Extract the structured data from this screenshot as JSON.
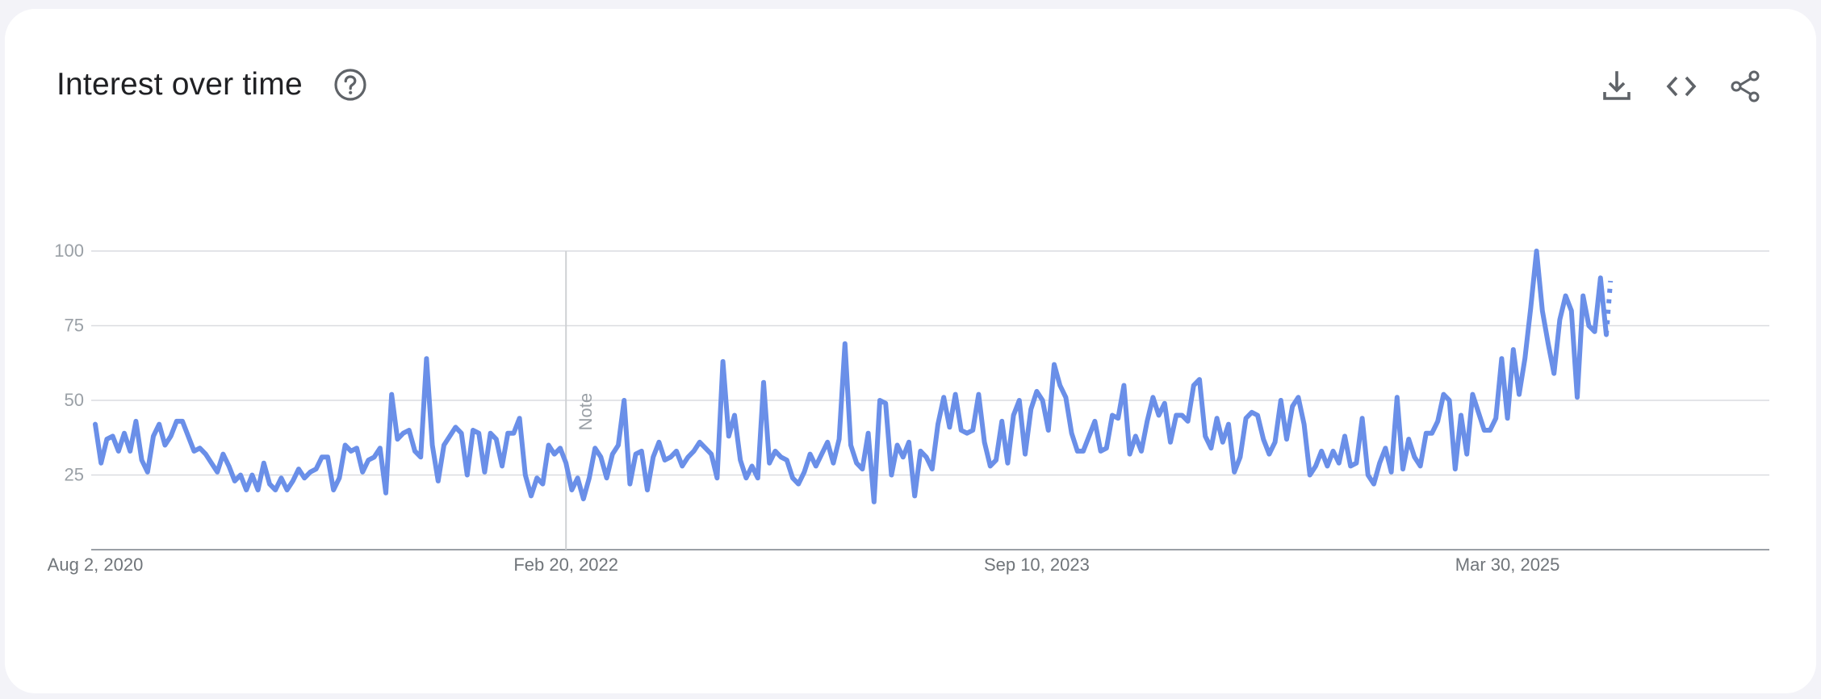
{
  "card": {
    "title": "Interest over time",
    "help_icon": "help-circle-icon",
    "actions": [
      {
        "name": "download-button",
        "icon": "download-icon"
      },
      {
        "name": "embed-button",
        "icon": "code-icon"
      },
      {
        "name": "share-button",
        "icon": "share-icon"
      }
    ]
  },
  "chart_data": {
    "type": "line",
    "title": "Interest over time",
    "xlabel": "",
    "ylabel": "",
    "ylim": [
      0,
      100
    ],
    "yticks": [
      25,
      50,
      75,
      100
    ],
    "grid": true,
    "legend": "none",
    "x_tick_labels": [
      "Aug 2, 2020",
      "Feb 20, 2022",
      "Sep 10, 2023",
      "Mar 30, 2025"
    ],
    "x_tick_weeks": [
      0,
      81,
      162,
      243
    ],
    "note": {
      "label": "Note",
      "week": 81
    },
    "series_color": "#6a8fe8",
    "grid_color": "#dadce0",
    "axis_color": "#9aa0a6",
    "series": [
      {
        "values": [
          42,
          29,
          37,
          38,
          33,
          39,
          33,
          43,
          30,
          26,
          38,
          42,
          35,
          38,
          43,
          43,
          38,
          33,
          34,
          32,
          29,
          26,
          32,
          28,
          23,
          25,
          20,
          25,
          20,
          29,
          22,
          20,
          24,
          20,
          23,
          27,
          24,
          26,
          27,
          31,
          31,
          20,
          24,
          35,
          33,
          34,
          26,
          30,
          31,
          34,
          19,
          52,
          37,
          39,
          40,
          33,
          31,
          64,
          35,
          23,
          35,
          38,
          41,
          39,
          25,
          40,
          39,
          26,
          39,
          37,
          28,
          39,
          39,
          44,
          25,
          18,
          24,
          22,
          35,
          32,
          34,
          29,
          20,
          24,
          17,
          24,
          34,
          31,
          24,
          32,
          35,
          50,
          22,
          32,
          33,
          20,
          31,
          36,
          30,
          31,
          33,
          28,
          31,
          33,
          36,
          34,
          32,
          24,
          63,
          38,
          45,
          30,
          24,
          28,
          24,
          56,
          29,
          33,
          31,
          30,
          24,
          22,
          26,
          32,
          28,
          32,
          36,
          29,
          37,
          69,
          35,
          29,
          27,
          39,
          16,
          50,
          49,
          25,
          35,
          31,
          36,
          18,
          33,
          31,
          27,
          42,
          51,
          41,
          52,
          40,
          39,
          40,
          52,
          36,
          28,
          30,
          43,
          29,
          45,
          50,
          32,
          47,
          53,
          50,
          40,
          62,
          55,
          51,
          39,
          33,
          33,
          38,
          43,
          33,
          34,
          45,
          44,
          55,
          32,
          38,
          33,
          43,
          51,
          45,
          49,
          36,
          45,
          45,
          43,
          55,
          57,
          38,
          34,
          44,
          36,
          42,
          26,
          31,
          44,
          46,
          45,
          37,
          32,
          36,
          50,
          37,
          48,
          51,
          42,
          25,
          28,
          33,
          28,
          33,
          29,
          38,
          28,
          29,
          44,
          25,
          22,
          29,
          34,
          26,
          51,
          27,
          37,
          31,
          28,
          39,
          39,
          43,
          52,
          50,
          27,
          45,
          32,
          52,
          46,
          40,
          40,
          44,
          64,
          44,
          67,
          52,
          64,
          81,
          100,
          80,
          69,
          59,
          77,
          85,
          80,
          51,
          85,
          75,
          73,
          91,
          72
        ]
      }
    ],
    "partial_tail": [
      81,
      90
    ]
  }
}
